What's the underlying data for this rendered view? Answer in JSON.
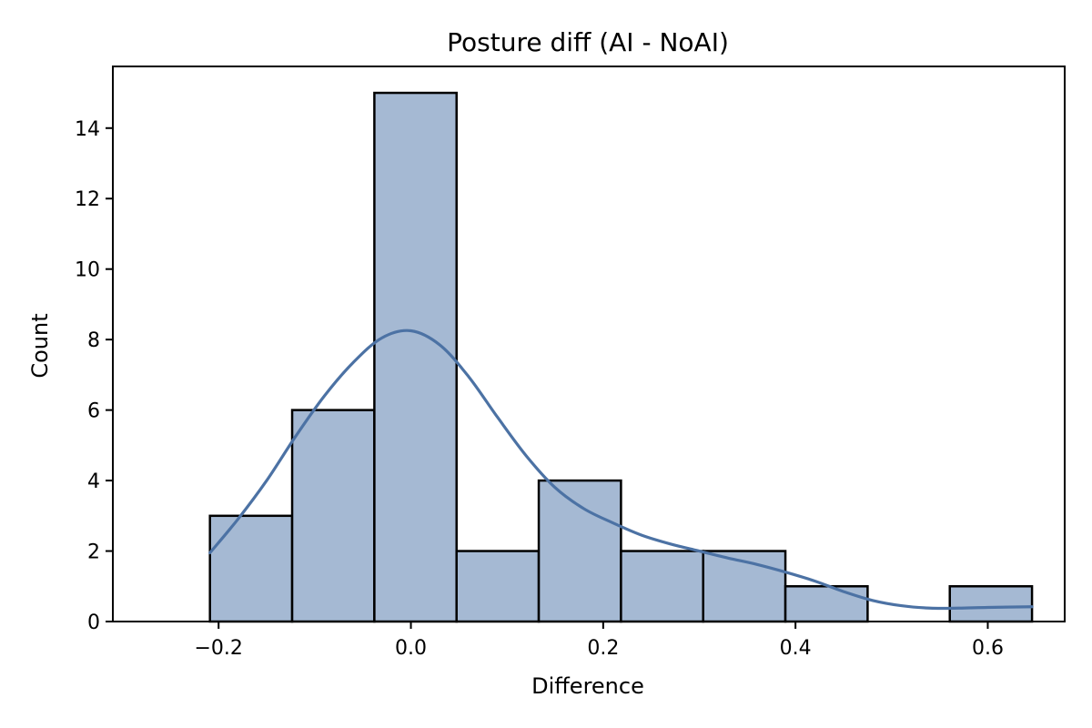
{
  "chart_data": {
    "type": "bar",
    "title": "Posture diff (AI - NoAI)",
    "xlabel": "Difference",
    "ylabel": "Count",
    "xlim": [
      -0.31,
      0.68
    ],
    "ylim": [
      0,
      15.75
    ],
    "xticks": [
      -0.2,
      0.0,
      0.2,
      0.4,
      0.6
    ],
    "xtick_labels": [
      "−0.2",
      "0.0",
      "0.2",
      "0.4",
      "0.6"
    ],
    "yticks": [
      0,
      2,
      4,
      6,
      8,
      10,
      12,
      14
    ],
    "ytick_labels": [
      "0",
      "2",
      "4",
      "6",
      "8",
      "10",
      "12",
      "14"
    ],
    "bins": [
      {
        "x0": -0.209,
        "x1": -0.1235,
        "count": 3
      },
      {
        "x0": -0.1235,
        "x1": -0.038,
        "count": 6
      },
      {
        "x0": -0.038,
        "x1": 0.0475,
        "count": 15
      },
      {
        "x0": 0.0475,
        "x1": 0.133,
        "count": 2
      },
      {
        "x0": 0.133,
        "x1": 0.2185,
        "count": 4
      },
      {
        "x0": 0.2185,
        "x1": 0.304,
        "count": 2
      },
      {
        "x0": 0.304,
        "x1": 0.3895,
        "count": 2
      },
      {
        "x0": 0.3895,
        "x1": 0.475,
        "count": 1
      },
      {
        "x0": 0.475,
        "x1": 0.5605,
        "count": 0
      },
      {
        "x0": 0.5605,
        "x1": 0.646,
        "count": 1
      }
    ],
    "kde": {
      "x": [
        -0.209,
        -0.18,
        -0.15,
        -0.12,
        -0.09,
        -0.06,
        -0.03,
        0.0,
        0.03,
        0.06,
        0.09,
        0.12,
        0.15,
        0.18,
        0.21,
        0.24,
        0.27,
        0.3,
        0.33,
        0.36,
        0.39,
        0.42,
        0.45,
        0.48,
        0.51,
        0.54,
        0.57,
        0.6,
        0.646
      ],
      "y": [
        1.95,
        2.9,
        4.0,
        5.25,
        6.4,
        7.35,
        8.05,
        8.25,
        7.85,
        6.95,
        5.8,
        4.7,
        3.8,
        3.2,
        2.8,
        2.45,
        2.2,
        2.0,
        1.8,
        1.62,
        1.4,
        1.15,
        0.85,
        0.6,
        0.45,
        0.38,
        0.38,
        0.4,
        0.42
      ]
    },
    "colors": {
      "bar_fill": "#a5b9d3",
      "bar_edge": "#000000",
      "kde_line": "#4c72a4"
    },
    "grid": false,
    "legend": "none"
  }
}
